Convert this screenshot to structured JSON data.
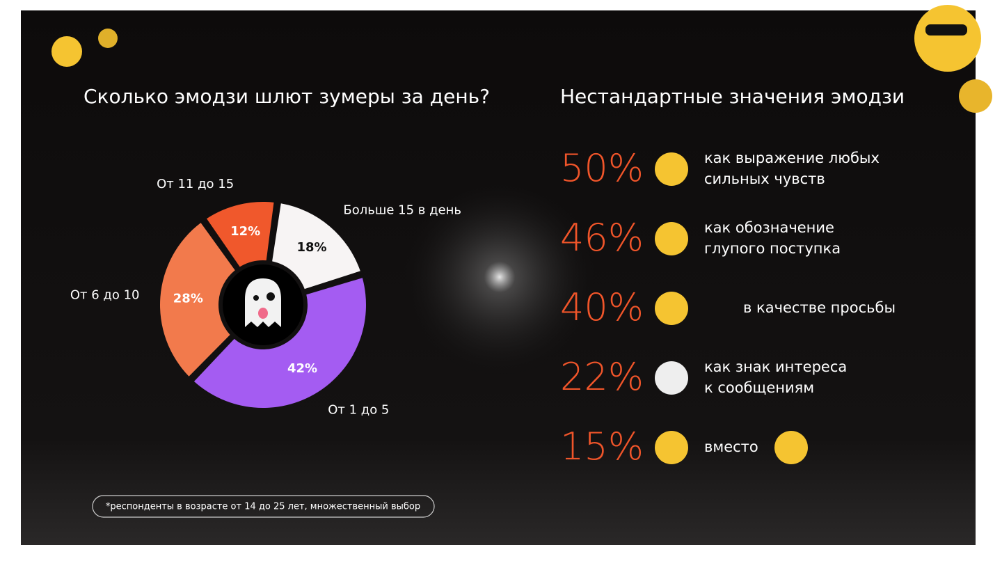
{
  "chart_data": {
    "type": "donut",
    "title": "Сколько эмодзи шлют зумеры за день?",
    "categories": [
      "Больше 15 в день",
      "От 1 до 5",
      "От 6 до 10",
      "От 11 до 15"
    ],
    "values": [
      18,
      42,
      28,
      12
    ],
    "value_labels": [
      "18%",
      "42%",
      "28%",
      "12%"
    ],
    "colors": [
      "#f7f4f4",
      "#a45cf2",
      "#f27a4c",
      "#f0582c"
    ]
  },
  "meanings": {
    "title": "Нестандартные значения эмодзи",
    "items": [
      {
        "percent": "50%",
        "lines": [
          "как выражение любых",
          "сильных чувств"
        ]
      },
      {
        "percent": "46%",
        "lines": [
          "как обозначение",
          "глупого поступка"
        ]
      },
      {
        "percent": "40%",
        "lines": [
          "в качестве просьбы"
        ]
      },
      {
        "percent": "22%",
        "lines": [
          "как знак интереса",
          "к сообщениям"
        ]
      },
      {
        "percent": "15%",
        "lines": [
          "вместо"
        ]
      }
    ]
  },
  "footnote": "*респонденты в возрасте от 14 до 25 лет, множественный выбор"
}
